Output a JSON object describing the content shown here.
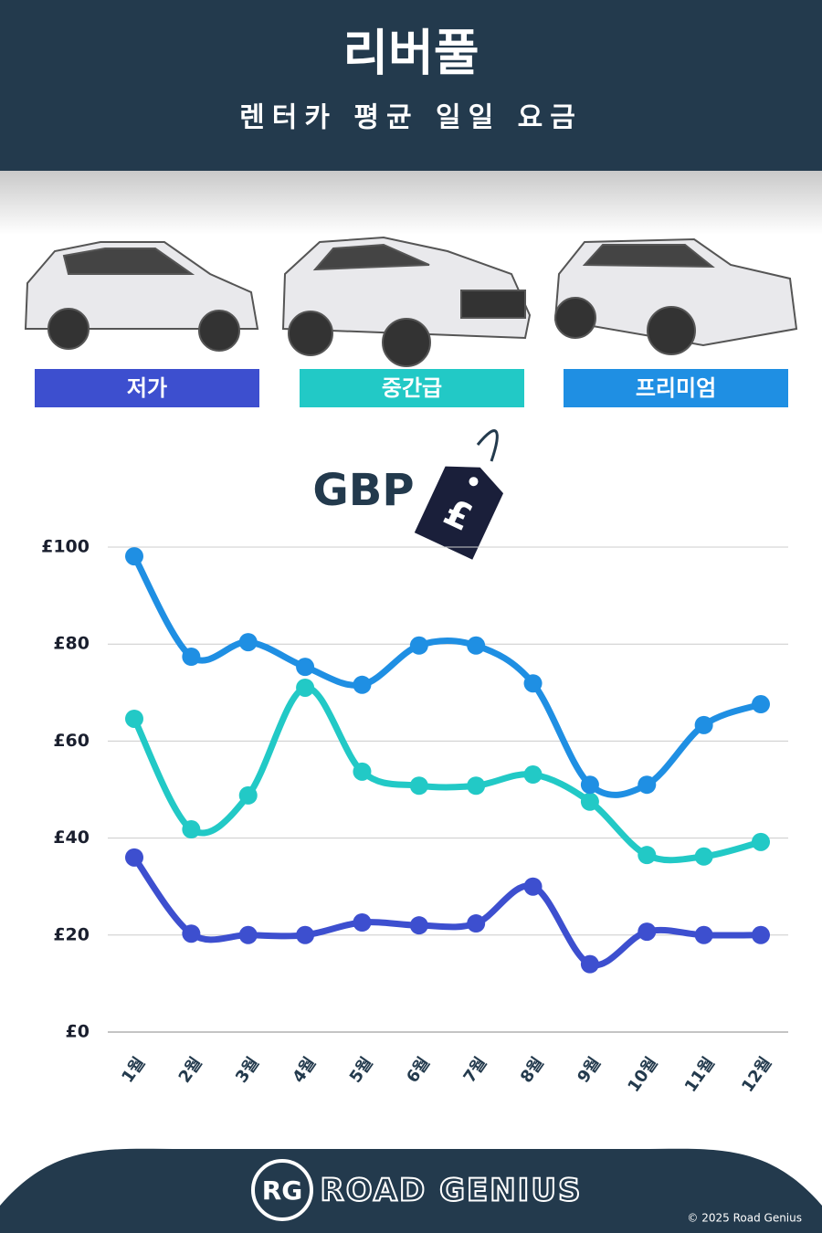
{
  "chart_data": {
    "type": "line",
    "title": "리버풀",
    "subtitle": "렌터카 평균 일일 요금",
    "currency_label": "GBP",
    "currency_symbol": "£",
    "categories": [
      "1월",
      "2월",
      "3월",
      "4월",
      "5월",
      "6월",
      "7월",
      "8월",
      "9월",
      "10월",
      "11월",
      "12월"
    ],
    "series": [
      {
        "name": "저가",
        "color": "#3d4fcf",
        "values": [
          36,
          20.3,
          20,
          20,
          22.6,
          22,
          22.4,
          30,
          14,
          20.7,
          20,
          20
        ]
      },
      {
        "name": "중간급",
        "color": "#22c9c6",
        "values": [
          64.6,
          41.8,
          48.8,
          71,
          53.7,
          50.8,
          50.8,
          53.1,
          47.5,
          36.5,
          36.2,
          39.2
        ]
      },
      {
        "name": "프리미엄",
        "color": "#1f8fe3",
        "values": [
          98.1,
          77.4,
          80.4,
          75.3,
          71.6,
          79.7,
          79.7,
          71.9,
          51,
          51,
          63.3,
          67.6
        ]
      }
    ],
    "ylim": [
      0,
      100
    ],
    "yticks": [
      {
        "value": 0,
        "label": "£0"
      },
      {
        "value": 20,
        "label": "£20"
      },
      {
        "value": 40,
        "label": "£40"
      },
      {
        "value": 60,
        "label": "£60"
      },
      {
        "value": 80,
        "label": "£80"
      },
      {
        "value": 100,
        "label": "£100"
      }
    ],
    "grid": true
  },
  "footer": {
    "logo": "RG",
    "brand": "ROAD GENIUS",
    "copyright": "© 2025 Road Genius"
  }
}
